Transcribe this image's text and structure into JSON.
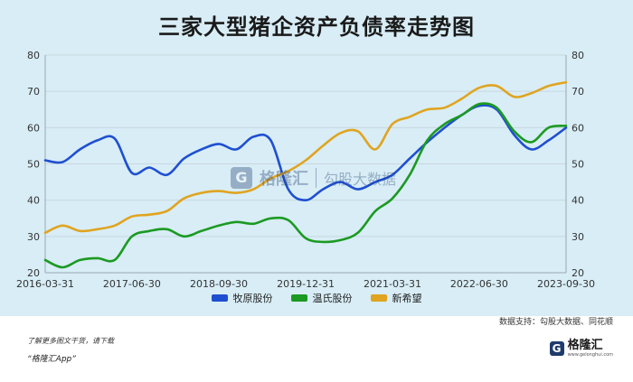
{
  "chart_data": {
    "type": "line",
    "title": "三家大型猪企资产负债率走势图",
    "x_tick_labels": [
      "2016-03-31",
      "2017-06-30",
      "2018-09-30",
      "2019-12-31",
      "2021-03-31",
      "2022-06-30",
      "2023-09-30"
    ],
    "y_ticks": [
      "80",
      "70",
      "60",
      "50",
      "40",
      "30",
      "20"
    ],
    "ylim": [
      20,
      80
    ],
    "grid": "horizontal",
    "legend_position": "bottom",
    "x_start": "2016-03-31",
    "x_end": "2023-09-30",
    "series": [
      {
        "name": "牧原股份",
        "color": "#1f4fd1",
        "x": [
          "2016-03-31",
          "2016-06-30",
          "2016-09-30",
          "2016-12-31",
          "2017-03-31",
          "2017-06-30",
          "2017-09-30",
          "2017-12-31",
          "2018-03-31",
          "2018-06-30",
          "2018-09-30",
          "2018-12-31",
          "2019-03-31",
          "2019-06-30",
          "2019-09-30",
          "2019-12-31",
          "2020-03-31",
          "2020-06-30",
          "2020-09-30",
          "2020-12-31",
          "2021-03-31",
          "2021-06-30",
          "2021-09-30",
          "2021-12-31",
          "2022-03-31",
          "2022-06-30",
          "2022-09-30",
          "2022-12-31",
          "2023-03-31",
          "2023-06-30",
          "2023-09-30"
        ],
        "values": [
          51,
          50.5,
          54,
          56.5,
          57,
          47.5,
          49,
          47,
          51.5,
          54,
          55.5,
          54,
          57.5,
          56.5,
          43,
          40,
          43,
          45,
          43,
          45,
          47,
          51.5,
          56,
          60,
          63.5,
          66,
          65,
          58,
          54,
          56.5,
          60
        ]
      },
      {
        "name": "温氏股份",
        "color": "#1c9a22",
        "x": [
          "2016-03-31",
          "2016-06-30",
          "2016-09-30",
          "2016-12-31",
          "2017-03-31",
          "2017-06-30",
          "2017-09-30",
          "2017-12-31",
          "2018-03-31",
          "2018-06-30",
          "2018-09-30",
          "2018-12-31",
          "2019-03-31",
          "2019-06-30",
          "2019-09-30",
          "2019-12-31",
          "2020-03-31",
          "2020-06-30",
          "2020-09-30",
          "2020-12-31",
          "2021-03-31",
          "2021-06-30",
          "2021-09-30",
          "2021-12-31",
          "2022-03-31",
          "2022-06-30",
          "2022-09-30",
          "2022-12-31",
          "2023-03-31",
          "2023-06-30",
          "2023-09-30"
        ],
        "values": [
          23.5,
          21.5,
          23.5,
          24,
          23.5,
          30,
          31.5,
          32,
          30,
          31.5,
          33,
          34,
          33.5,
          35,
          34.5,
          29.5,
          28.5,
          29,
          31,
          37,
          40.5,
          47,
          56.5,
          61,
          63.5,
          66.5,
          65.5,
          59,
          56,
          60,
          60.5
        ]
      },
      {
        "name": "新希望",
        "color": "#e0a420",
        "x": [
          "2016-03-31",
          "2016-06-30",
          "2016-09-30",
          "2016-12-31",
          "2017-03-31",
          "2017-06-30",
          "2017-09-30",
          "2017-12-31",
          "2018-03-31",
          "2018-06-30",
          "2018-09-30",
          "2018-12-31",
          "2019-03-31",
          "2019-06-30",
          "2019-09-30",
          "2019-12-31",
          "2020-03-31",
          "2020-06-30",
          "2020-09-30",
          "2020-12-31",
          "2021-03-31",
          "2021-06-30",
          "2021-09-30",
          "2021-12-31",
          "2022-03-31",
          "2022-06-30",
          "2022-09-30",
          "2022-12-31",
          "2023-03-31",
          "2023-06-30",
          "2023-09-30"
        ],
        "values": [
          31,
          33,
          31.5,
          32,
          33,
          35.5,
          36,
          37,
          40.5,
          42,
          42.5,
          42,
          43,
          46,
          48,
          51,
          55,
          58.5,
          59,
          54,
          61,
          63,
          65,
          65.5,
          68,
          71,
          71.5,
          68.5,
          69.5,
          71.5,
          72.5
        ]
      }
    ]
  },
  "source_text": "数据支持：勾股大数据、同花顺",
  "watermark": {
    "brand": "格隆汇",
    "sub": "勾股大数据"
  },
  "footer": {
    "hint": "了解更多图文干货，请下载",
    "app": "“格隆汇App”",
    "brand_name": "格隆汇",
    "brand_url": "www.gelonghui.com"
  },
  "icons": {
    "brand_logo": "gelonghui-logo-icon"
  }
}
